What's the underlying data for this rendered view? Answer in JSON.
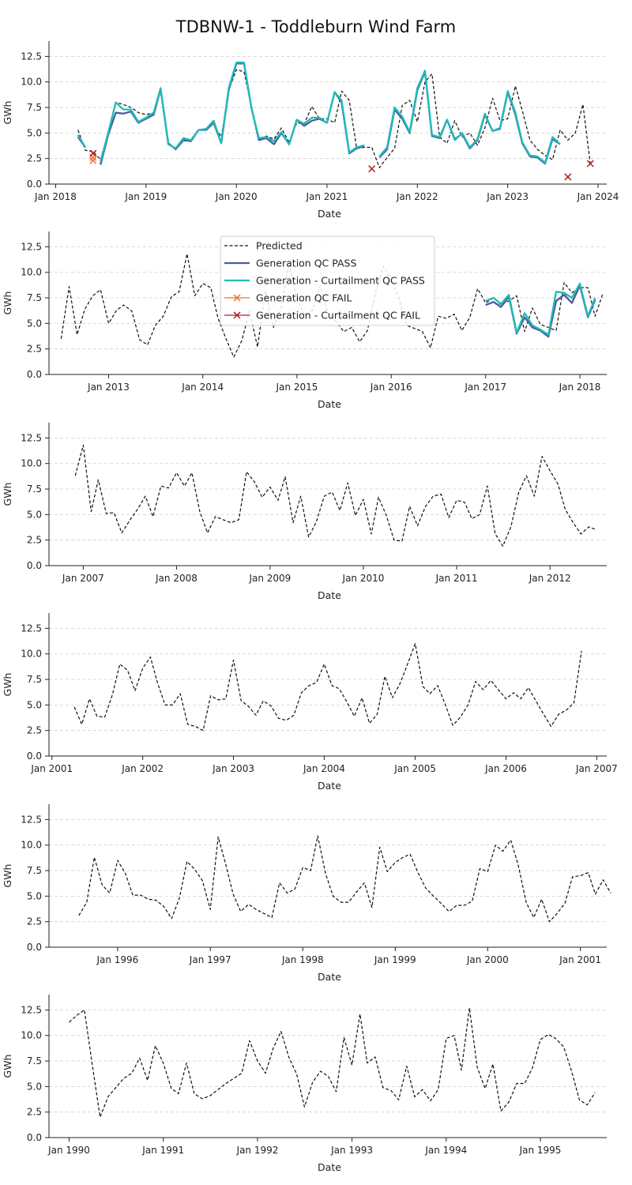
{
  "title": "TDBNW-1 - Toddleburn Wind Farm",
  "legend": {
    "placement": "upper-center of panel 2",
    "entries": [
      {
        "label": "Predicted",
        "color": "#111111",
        "style": "dashed"
      },
      {
        "label": "Generation QC PASS",
        "color": "#4b5b9b",
        "style": "solid"
      },
      {
        "label": "Generation - Curtailment QC PASS",
        "color": "#1fbcb8",
        "style": "solid"
      },
      {
        "label": "Generation QC FAIL",
        "color": "#e8703a",
        "style": "marker-x"
      },
      {
        "label": "Generation - Curtailment QC FAIL",
        "color": "#b01c1c",
        "style": "marker-x"
      }
    ]
  },
  "chart_data": [
    {
      "type": "line",
      "xlabel": "Date",
      "ylabel": "GWh",
      "ylim": [
        0,
        14
      ],
      "yticks": [
        "0.0",
        "2.5",
        "5.0",
        "7.5",
        "10.0",
        "12.5"
      ],
      "grid": "horizontal dashed",
      "xrange": [
        "2017-12-05",
        "2024-02-05"
      ],
      "xticks": [
        {
          "date": "2018-01-01",
          "label": "Jan 2018"
        },
        {
          "date": "2019-01-01",
          "label": "Jan 2019"
        },
        {
          "date": "2020-01-01",
          "label": "Jan 2020"
        },
        {
          "date": "2021-01-01",
          "label": "Jan 2021"
        },
        {
          "date": "2022-01-01",
          "label": "Jan 2022"
        },
        {
          "date": "2023-01-01",
          "label": "Jan 2023"
        },
        {
          "date": "2024-01-01",
          "label": "Jan 2024"
        }
      ],
      "series": [
        {
          "name": "Predicted",
          "start": "2018-04",
          "values": [
            5.3,
            3.3,
            3.2,
            2.4,
            5.0,
            8.0,
            7.8,
            7.5,
            7.0,
            6.8,
            7.0,
            9.1,
            4.0,
            3.5,
            4.2,
            4.3,
            5.2,
            5.4,
            5.9,
            4.6,
            9.2,
            11.2,
            11.0,
            7.6,
            4.3,
            4.7,
            4.4,
            5.5,
            4.1,
            6.0,
            5.9,
            7.6,
            6.4,
            6.4,
            6.0,
            9.1,
            8.2,
            3.5,
            3.6,
            3.6,
            1.6,
            2.6,
            3.5,
            7.7,
            8.2,
            6.1,
            10.0,
            10.8,
            4.6,
            4.0,
            6.2,
            4.6,
            5.0,
            3.8,
            5.5,
            8.4,
            6.2,
            6.4,
            9.6,
            7.2,
            4.3,
            3.4,
            2.8,
            2.4,
            5.3,
            4.3,
            5.0,
            7.8,
            1.9
          ]
        },
        {
          "name": "Generation QC PASS",
          "start": "2018-04",
          "values": [
            4.6,
            3.6,
            null,
            1.9,
            4.8,
            7.0,
            6.9,
            7.1,
            6.0,
            6.4,
            6.8,
            9.3,
            4.0,
            3.4,
            4.3,
            4.2,
            5.3,
            5.3,
            6.0,
            4.0,
            9.2,
            11.8,
            11.8,
            7.6,
            4.3,
            4.5,
            3.9,
            5.0,
            3.9,
            6.3,
            5.7,
            6.2,
            6.4,
            6.0,
            9.0,
            8.0,
            3.0,
            3.5,
            3.7,
            null,
            2.6,
            3.4,
            7.3,
            6.4,
            5.0,
            9.2,
            11.0,
            4.7,
            4.5,
            6.3,
            4.4,
            4.9,
            3.5,
            4.3,
            6.8,
            5.2,
            5.4,
            9.0,
            6.8,
            4.0,
            2.7,
            2.6,
            2.0,
            4.4,
            3.9
          ]
        },
        {
          "name": "Generation - Curtailment QC PASS",
          "start": "2018-04",
          "values": [
            4.8,
            3.6,
            null,
            2.2,
            5.0,
            8.0,
            7.3,
            7.3,
            6.1,
            6.5,
            7.0,
            9.4,
            3.9,
            3.5,
            4.5,
            4.3,
            5.3,
            5.4,
            6.2,
            4.0,
            9.4,
            11.9,
            11.9,
            7.5,
            4.5,
            4.6,
            4.2,
            5.1,
            3.9,
            6.3,
            5.9,
            6.5,
            6.5,
            6.0,
            9.0,
            8.2,
            3.1,
            3.6,
            3.8,
            null,
            2.7,
            3.6,
            7.5,
            6.6,
            5.1,
            9.4,
            11.1,
            4.8,
            4.6,
            6.3,
            4.3,
            5.0,
            3.6,
            4.4,
            6.9,
            5.2,
            5.5,
            9.1,
            7.0,
            4.1,
            2.8,
            2.7,
            2.1,
            4.6,
            3.9
          ]
        },
        {
          "name": "Generation QC FAIL",
          "points": [
            {
              "x": "2018-06",
              "y": 2.3
            },
            {
              "x": "2018-06",
              "y": 2.6
            }
          ]
        },
        {
          "name": "Generation - Curtailment QC FAIL",
          "points": [
            {
              "x": "2018-06",
              "y": 3.0
            },
            {
              "x": "2021-07",
              "y": 1.5
            },
            {
              "x": "2023-09",
              "y": 0.7
            },
            {
              "x": "2023-12",
              "y": 2.0
            }
          ]
        }
      ]
    },
    {
      "type": "line",
      "xlabel": "Date",
      "ylabel": "GWh",
      "ylim": [
        0,
        14
      ],
      "yticks": [
        "0.0",
        "2.5",
        "5.0",
        "7.5",
        "10.0",
        "12.5"
      ],
      "grid": "horizontal dashed",
      "xrange": [
        "2012-05-15",
        "2018-04-15"
      ],
      "xticks": [
        {
          "date": "2013-01-01",
          "label": "Jan 2013"
        },
        {
          "date": "2014-01-01",
          "label": "Jan 2014"
        },
        {
          "date": "2015-01-01",
          "label": "Jan 2015"
        },
        {
          "date": "2016-01-01",
          "label": "Jan 2016"
        },
        {
          "date": "2017-01-01",
          "label": "Jan 2017"
        },
        {
          "date": "2018-01-01",
          "label": "Jan 2018"
        }
      ],
      "series": [
        {
          "name": "Predicted",
          "start": "2012-07",
          "values": [
            3.5,
            8.6,
            3.9,
            6.4,
            7.7,
            8.3,
            5.0,
            6.3,
            6.8,
            6.2,
            3.4,
            2.9,
            4.8,
            5.7,
            7.6,
            8.1,
            11.8,
            7.7,
            8.9,
            8.5,
            5.5,
            3.5,
            1.7,
            3.3,
            6.2,
            2.7,
            8.2,
            4.6,
            6.5,
            10.9,
            7.3,
            5.8,
            6.2,
            8.7,
            5.9,
            5.2,
            4.2,
            4.6,
            3.2,
            4.3,
            8.0,
            10.6,
            9.3,
            7.4,
            4.8,
            4.5,
            4.2,
            2.6,
            5.7,
            5.5,
            5.9,
            4.3,
            5.6,
            8.4,
            7.0,
            7.5,
            6.8,
            7.2,
            7.7,
            4.2,
            6.5,
            4.9,
            4.6,
            4.3,
            9.0,
            8.0,
            8.5,
            8.5,
            5.7,
            8.0
          ]
        },
        {
          "name": "Generation QC PASS",
          "start": "2017-01",
          "values": [
            6.8,
            7.1,
            6.6,
            7.6,
            4.0,
            5.6,
            4.6,
            4.3,
            3.7,
            7.2,
            7.8,
            7.0,
            8.7,
            5.6,
            7.3
          ]
        },
        {
          "name": "Generation - Curtailment QC PASS",
          "start": "2017-01",
          "values": [
            7.2,
            7.5,
            6.9,
            7.8,
            4.1,
            6.0,
            4.8,
            4.4,
            3.9,
            8.1,
            8.0,
            7.5,
            8.9,
            5.7,
            7.5
          ]
        }
      ]
    },
    {
      "type": "line",
      "xlabel": "Date",
      "ylabel": "GWh",
      "ylim": [
        0,
        14
      ],
      "yticks": [
        "0.0",
        "2.5",
        "5.0",
        "7.5",
        "10.0",
        "12.5"
      ],
      "grid": "horizontal dashed",
      "xrange": [
        "2006-08-20",
        "2012-08-10"
      ],
      "xticks": [
        {
          "date": "2007-01-01",
          "label": "Jan 2007"
        },
        {
          "date": "2008-01-01",
          "label": "Jan 2008"
        },
        {
          "date": "2009-01-01",
          "label": "Jan 2009"
        },
        {
          "date": "2010-01-01",
          "label": "Jan 2010"
        },
        {
          "date": "2011-01-01",
          "label": "Jan 2011"
        },
        {
          "date": "2012-01-01",
          "label": "Jan 2012"
        }
      ],
      "series": [
        {
          "name": "Predicted",
          "start": "2006-12",
          "values": [
            8.8,
            11.8,
            5.3,
            8.4,
            5.1,
            5.2,
            3.2,
            4.4,
            5.5,
            6.8,
            4.8,
            7.8,
            7.6,
            9.1,
            7.8,
            9.1,
            5.3,
            3.2,
            4.8,
            4.5,
            4.2,
            4.5,
            9.2,
            8.2,
            6.7,
            7.7,
            6.4,
            8.7,
            4.2,
            6.8,
            2.8,
            4.3,
            6.8,
            7.2,
            5.4,
            8.1,
            4.9,
            6.5,
            3.1,
            6.7,
            4.9,
            2.5,
            2.4,
            5.8,
            3.9,
            5.8,
            6.8,
            7.0,
            4.7,
            6.4,
            6.2,
            4.6,
            5.0,
            7.8,
            3.1,
            1.9,
            3.8,
            7.2,
            8.8,
            6.8,
            10.7,
            9.3,
            8.0,
            5.5,
            4.2,
            3.1,
            3.8,
            3.5
          ]
        }
      ]
    },
    {
      "type": "line",
      "xlabel": "Date",
      "ylabel": "GWh",
      "ylim": [
        0,
        14
      ],
      "yticks": [
        "0.0",
        "2.5",
        "5.0",
        "7.5",
        "10.0",
        "12.5"
      ],
      "grid": "horizontal dashed",
      "xrange": [
        "2000-12-20",
        "2007-02-10"
      ],
      "xticks": [
        {
          "date": "2001-01-01",
          "label": "Jan 2001"
        },
        {
          "date": "2002-01-01",
          "label": "Jan 2002"
        },
        {
          "date": "2003-01-01",
          "label": "Jan 2003"
        },
        {
          "date": "2004-01-01",
          "label": "Jan 2004"
        },
        {
          "date": "2005-01-01",
          "label": "Jan 2005"
        },
        {
          "date": "2006-01-01",
          "label": "Jan 2006"
        },
        {
          "date": "2007-01-01",
          "label": "Jan 2007"
        }
      ],
      "series": [
        {
          "name": "Predicted",
          "start": "2001-04",
          "values": [
            4.8,
            3.1,
            5.6,
            3.9,
            3.8,
            6.0,
            9.0,
            8.4,
            6.4,
            8.6,
            9.7,
            7.2,
            5.0,
            5.0,
            6.1,
            3.1,
            2.9,
            2.5,
            5.9,
            5.5,
            5.6,
            9.4,
            5.4,
            4.9,
            4.0,
            5.4,
            4.9,
            3.7,
            3.5,
            4.0,
            6.2,
            6.9,
            7.2,
            9.0,
            6.9,
            6.6,
            5.3,
            3.9,
            5.7,
            3.2,
            4.1,
            7.8,
            5.7,
            7.1,
            9.0,
            11.0,
            6.8,
            6.1,
            6.9,
            5.1,
            3.0,
            3.8,
            5.0,
            7.3,
            6.5,
            7.4,
            6.5,
            5.6,
            6.2,
            5.6,
            6.7,
            5.4,
            4.1,
            2.9,
            4.1,
            4.5,
            5.2,
            10.3
          ]
        }
      ]
    },
    {
      "type": "line",
      "xlabel": "Date",
      "ylabel": "GWh",
      "ylim": [
        0,
        14
      ],
      "yticks": [
        "0.0",
        "2.5",
        "5.0",
        "7.5",
        "10.0",
        "12.5"
      ],
      "grid": "horizontal dashed",
      "xrange": [
        "1995-04-05",
        "2001-04-15"
      ],
      "xticks": [
        {
          "date": "1996-01-01",
          "label": "Jan 1996"
        },
        {
          "date": "1997-01-01",
          "label": "Jan 1997"
        },
        {
          "date": "1998-01-01",
          "label": "Jan 1998"
        },
        {
          "date": "1999-01-01",
          "label": "Jan 1999"
        },
        {
          "date": "2000-01-01",
          "label": "Jan 2000"
        },
        {
          "date": "2001-01-01",
          "label": "Jan 2001"
        }
      ],
      "series": [
        {
          "name": "Predicted",
          "start": "1995-08",
          "values": [
            3.1,
            4.4,
            8.8,
            6.1,
            5.3,
            8.5,
            7.2,
            5.1,
            5.1,
            4.7,
            4.6,
            4.0,
            2.8,
            4.8,
            8.4,
            7.6,
            6.5,
            3.7,
            10.8,
            8.3,
            5.2,
            3.5,
            4.2,
            3.7,
            3.3,
            2.9,
            6.3,
            5.3,
            5.7,
            7.8,
            7.5,
            10.9,
            7.2,
            5.0,
            4.4,
            4.4,
            5.4,
            6.3,
            3.9,
            9.8,
            7.4,
            8.3,
            8.8,
            9.1,
            7.3,
            5.8,
            5.0,
            4.3,
            3.5,
            4.1,
            4.1,
            4.5,
            7.7,
            7.4,
            10.0,
            9.4,
            10.5,
            8.0,
            4.4,
            2.9,
            4.7,
            2.5,
            3.3,
            4.3,
            6.9,
            7.0,
            7.3,
            5.2,
            6.6,
            5.3
          ]
        }
      ]
    },
    {
      "type": "line",
      "xlabel": "Date",
      "ylabel": "GWh",
      "ylim": [
        0,
        14
      ],
      "yticks": [
        "0.0",
        "2.5",
        "5.0",
        "7.5",
        "10.0",
        "12.5"
      ],
      "grid": "horizontal dashed",
      "xrange": [
        "1989-10-15",
        "1995-09-15"
      ],
      "xticks": [
        {
          "date": "1990-01-01",
          "label": "Jan 1990"
        },
        {
          "date": "1991-01-01",
          "label": "Jan 1991"
        },
        {
          "date": "1992-01-01",
          "label": "Jan 1992"
        },
        {
          "date": "1993-01-01",
          "label": "Jan 1993"
        },
        {
          "date": "1994-01-01",
          "label": "Jan 1994"
        },
        {
          "date": "1995-01-01",
          "label": "Jan 1995"
        }
      ],
      "series": [
        {
          "name": "Predicted",
          "start": "1990-01",
          "values": [
            11.3,
            12.0,
            12.5,
            7.1,
            2.0,
            4.0,
            4.9,
            5.8,
            6.3,
            7.8,
            5.6,
            9.0,
            7.3,
            4.8,
            4.3,
            7.3,
            4.3,
            3.8,
            4.1,
            4.7,
            5.3,
            5.8,
            6.3,
            9.5,
            7.5,
            6.3,
            8.7,
            10.4,
            7.9,
            6.2,
            3.0,
            5.4,
            6.5,
            6.0,
            4.5,
            9.8,
            7.1,
            12.1,
            7.3,
            7.9,
            4.9,
            4.6,
            3.7,
            7.0,
            4.0,
            4.7,
            3.6,
            4.7,
            9.7,
            10.0,
            6.6,
            12.7,
            6.9,
            4.8,
            7.2,
            2.6,
            3.5,
            5.3,
            5.3,
            6.8,
            9.6,
            10.1,
            9.7,
            8.9,
            6.6,
            3.7,
            3.2,
            4.4
          ]
        }
      ]
    }
  ]
}
